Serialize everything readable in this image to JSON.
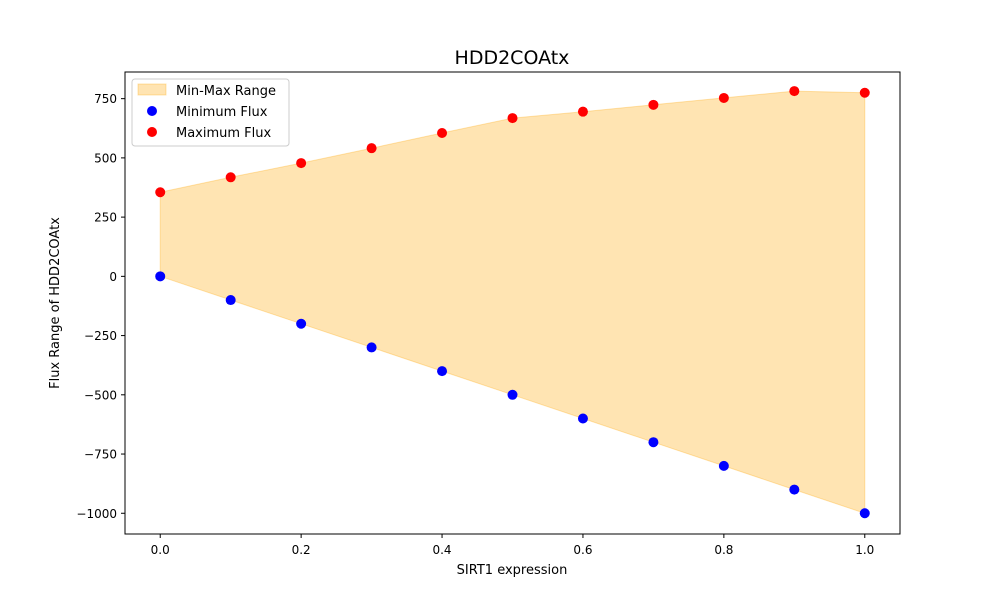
{
  "chart_data": {
    "type": "scatter",
    "title": "HDD2COAtx",
    "xlabel": "SIRT1 expression",
    "ylabel": "Flux Range of HDD2COAtx",
    "xlim": [
      -0.05,
      1.05
    ],
    "ylim": [
      -1087.5,
      862.5
    ],
    "x_ticks": [
      0.0,
      0.2,
      0.4,
      0.6,
      0.8,
      1.0
    ],
    "x_tick_labels": [
      "0.0",
      "0.2",
      "0.4",
      "0.6",
      "0.8",
      "1.0"
    ],
    "y_ticks": [
      750,
      500,
      250,
      0,
      -250,
      -500,
      -750,
      -1000
    ],
    "y_tick_labels": [
      "750",
      "500",
      "250",
      "0",
      "−250",
      "−500",
      "−750",
      "−1000"
    ],
    "x": [
      0.0,
      0.1,
      0.2,
      0.3,
      0.4,
      0.5,
      0.6,
      0.7,
      0.8,
      0.9,
      1.0
    ],
    "series": [
      {
        "name": "Minimum Flux",
        "kind": "scatter",
        "color": "#0000ff",
        "values": [
          0,
          -100,
          -200,
          -300,
          -400,
          -500,
          -600,
          -700,
          -800,
          -900,
          -1000
        ]
      },
      {
        "name": "Maximum Flux",
        "kind": "scatter",
        "color": "#ff0000",
        "values": [
          355,
          418,
          478,
          541,
          605,
          668,
          695,
          724,
          753,
          782,
          775
        ]
      }
    ],
    "fill": {
      "name": "Min-Max Range",
      "color": "#ffa500",
      "alpha": 0.3,
      "between": [
        "Minimum Flux",
        "Maximum Flux"
      ]
    },
    "legend": {
      "position": "top-left",
      "entries": [
        "Min-Max Range",
        "Minimum Flux",
        "Maximum Flux"
      ]
    },
    "grid": false
  }
}
